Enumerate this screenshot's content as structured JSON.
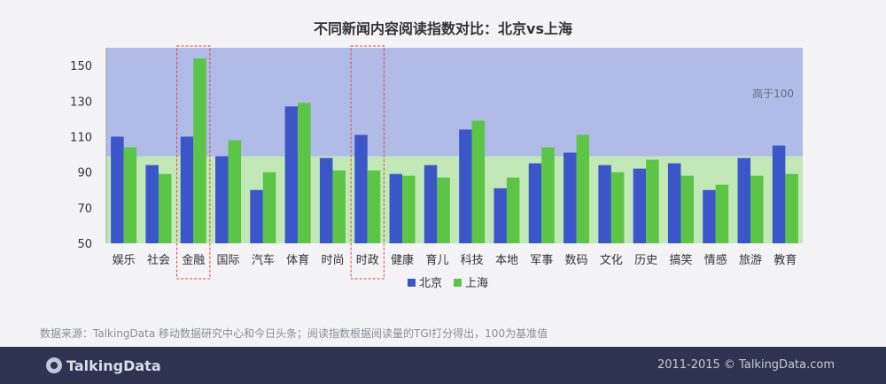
{
  "chart_data": {
    "type": "bar",
    "title": "不同新闻内容阅读指数对比：北京vs上海",
    "categories": [
      "娱乐",
      "社会",
      "金融",
      "国际",
      "汽车",
      "体育",
      "时尚",
      "时政",
      "健康",
      "育儿",
      "科技",
      "本地",
      "军事",
      "数码",
      "文化",
      "历史",
      "搞笑",
      "情感",
      "旅游",
      "教育"
    ],
    "series": [
      {
        "name": "北京",
        "color": "#3b56c8",
        "values": [
          110,
          94,
          110,
          99,
          80,
          127,
          98,
          111,
          89,
          94,
          114,
          81,
          95,
          101,
          94,
          92,
          95,
          80,
          98,
          105
        ]
      },
      {
        "name": "上海",
        "color": "#5cc546",
        "values": [
          104,
          89,
          154,
          108,
          90,
          129,
          91,
          91,
          88,
          87,
          119,
          87,
          104,
          111,
          90,
          97,
          88,
          83,
          88,
          89
        ]
      }
    ],
    "ylim": [
      50,
      160
    ],
    "yticks": [
      50,
      70,
      90,
      110,
      130,
      150
    ],
    "bands": [
      {
        "from": 50,
        "to": 99,
        "color": "#c2e8b8",
        "label": ""
      },
      {
        "from": 99,
        "to": 160,
        "color": "#b0bbe8",
        "label": "高于100"
      }
    ],
    "highlighted_categories": [
      "金融",
      "时政"
    ],
    "highlight_color": "#e0443e",
    "legend_position": "bottom"
  },
  "source_note": "数据来源：TalkingData 移动数据研究中心和今日头条；阅读指数根据阅读量的TGI打分得出，100为基准值",
  "footer": {
    "logo_text": "TalkingData",
    "copyright": "2011-2015 © TalkingData.com"
  }
}
